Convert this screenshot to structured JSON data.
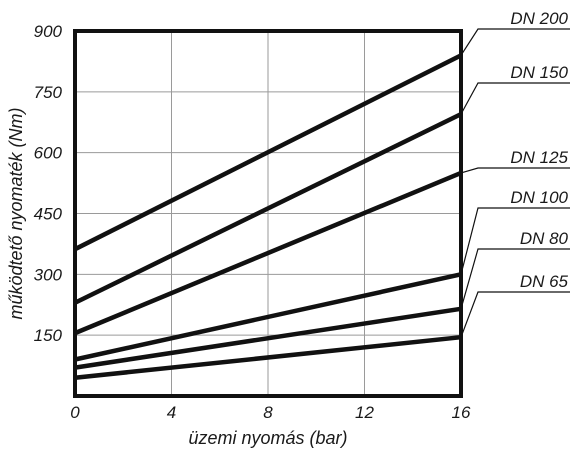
{
  "chart_data": {
    "type": "line",
    "xlabel": "üzemi nyomás (bar)",
    "ylabel": "működtető nyomaték (Nm)",
    "xlim": [
      0,
      16
    ],
    "ylim": [
      0,
      900
    ],
    "x_ticks": [
      "0",
      "4",
      "8",
      "12",
      "16"
    ],
    "y_ticks": [
      "150",
      "300",
      "450",
      "600",
      "750",
      "900"
    ],
    "grid": true,
    "series": [
      {
        "name": "DN 200",
        "x": [
          0,
          16
        ],
        "y": [
          362,
          840
        ]
      },
      {
        "name": "DN 150",
        "x": [
          0,
          16
        ],
        "y": [
          230,
          695
        ]
      },
      {
        "name": "DN 125",
        "x": [
          0,
          16
        ],
        "y": [
          155,
          550
        ]
      },
      {
        "name": "DN 100",
        "x": [
          0,
          16
        ],
        "y": [
          90,
          300
        ]
      },
      {
        "name": "DN 80",
        "x": [
          0,
          16
        ],
        "y": [
          70,
          215
        ]
      },
      {
        "name": "DN 65",
        "x": [
          0,
          16
        ],
        "y": [
          45,
          145
        ]
      }
    ]
  }
}
